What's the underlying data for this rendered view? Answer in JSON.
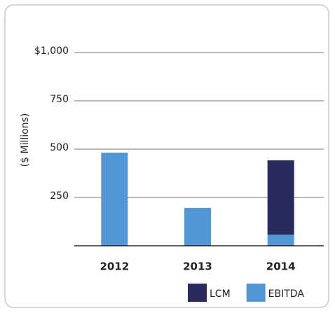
{
  "chart_data": {
    "type": "stacked_bar",
    "y_label": "($ Millions)",
    "categories": [
      "2012",
      "2013",
      "2014"
    ],
    "series": [
      {
        "name": "LCM",
        "color": "#2b2a5c",
        "values": [
          null,
          null,
          384
        ]
      },
      {
        "name": "EBITDA",
        "color": "#5197d5",
        "values": [
          482,
          196,
          58
        ]
      }
    ],
    "ylim": [
      0,
      1000
    ],
    "yticks": [
      250,
      500,
      750,
      {
        "value": 1000,
        "label": "$1,000"
      }
    ],
    "grid": true,
    "legend": "bottom"
  }
}
